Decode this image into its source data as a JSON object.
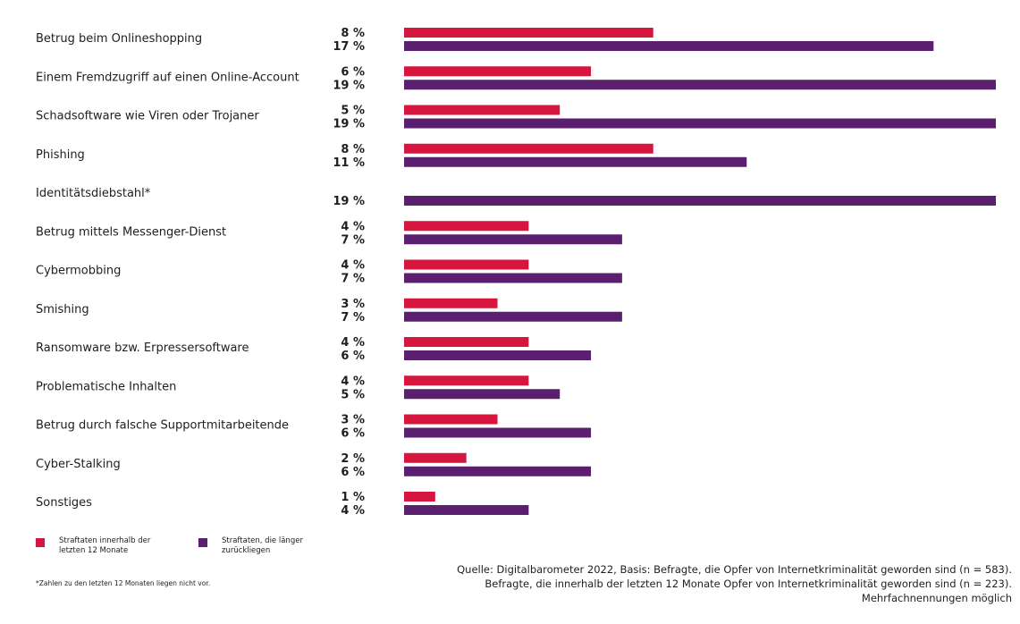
{
  "chart_data": {
    "type": "bar",
    "orientation": "horizontal",
    "categories": [
      "Betrug beim Onlineshopping",
      "Einem Fremdzugriff auf einen Online-Account",
      "Schadsoftware wie Viren oder Trojaner",
      "Phishing",
      "Identitätsdiebstahl*",
      "Betrug mittels Messenger-Dienst",
      "Cybermobbing",
      "Smishing",
      "Ransomware bzw. Erpressersoftware",
      "Problematische Inhalten",
      "Betrug durch falsche Supportmitarbeitende",
      "Cyber-Stalking",
      "Sonstiges"
    ],
    "series": [
      {
        "name": "Straftaten innerhalb der letzten 12 Monate",
        "color": "#d6163f",
        "values": [
          8,
          6,
          5,
          8,
          null,
          4,
          4,
          3,
          4,
          4,
          3,
          2,
          1
        ],
        "labels": [
          "8 %",
          "6 %",
          "5 %",
          "8 %",
          "",
          "4 %",
          "4 %",
          "3 %",
          "4 %",
          "4 %",
          "3 %",
          "2 %",
          "1 %"
        ]
      },
      {
        "name": "Straftaten, die länger zurückliegen",
        "color": "#5a1f6e",
        "values": [
          17,
          19,
          19,
          11,
          19,
          7,
          7,
          7,
          6,
          5,
          6,
          6,
          4
        ],
        "labels": [
          "17 %",
          "19 %",
          "19 %",
          "11 %",
          "19 %",
          "7 %",
          "7 %",
          "7 %",
          "6 %",
          "5 %",
          "6 %",
          "6 %",
          "4 %"
        ]
      }
    ],
    "xlim": [
      0,
      19
    ],
    "grid": false,
    "legend": "bottom-left"
  },
  "legend": {
    "items": [
      {
        "line1": "Straftaten innerhalb der",
        "line2": "letzten 12 Monate",
        "color": "#d6163f"
      },
      {
        "line1": "Straftaten, die länger",
        "line2": "zurückliegen",
        "color": "#5a1f6e"
      }
    ]
  },
  "footnote": "*Zahlen zu den letzten 12 Monaten liegen nicht vor.",
  "source": {
    "line1": "Quelle: Digitalbarometer 2022, Basis: Befragte, die Opfer von Internetkriminalität geworden sind (n = 583).",
    "line2": "Befragte, die innerhalb der letzten 12 Monate Opfer von Internetkriminalität geworden sind (n = 223).",
    "line3": "Mehrfachnennungen möglich"
  }
}
